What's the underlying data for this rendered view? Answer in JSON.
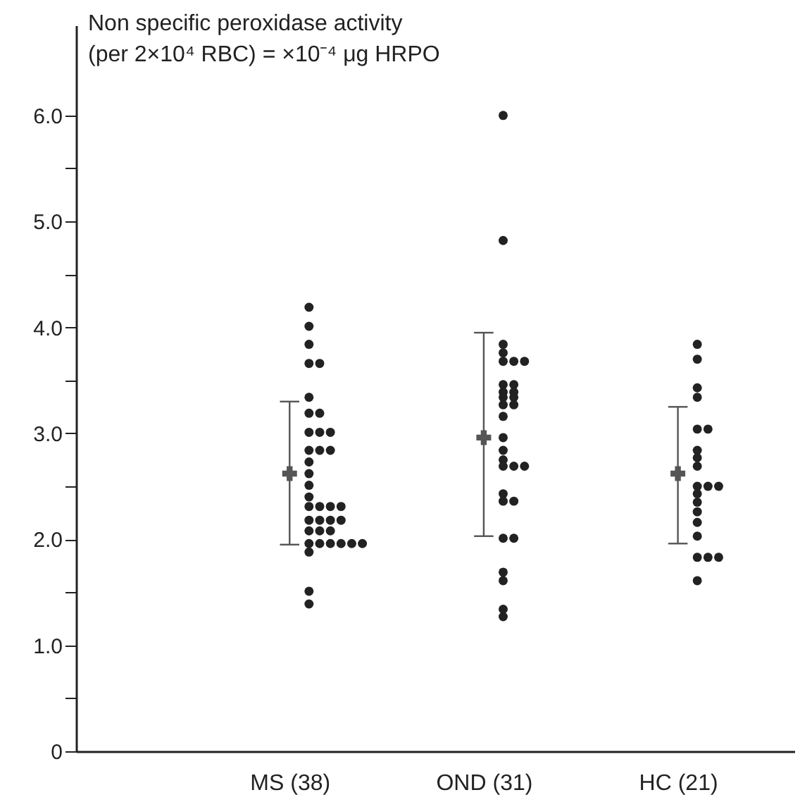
{
  "chart_data": {
    "type": "scatter",
    "categories": [
      "MS (38)",
      "OND (31)",
      "HC (21)"
    ],
    "ylabel": [
      "Non specific peroxidase activity",
      "(per 2×10⁴ RBC) = ×10⁻⁴ μg HRPO"
    ],
    "ylim": [
      0,
      6.85
    ],
    "yticks": [
      0,
      {
        "value": 0.5,
        "label": null
      },
      {
        "value": 1,
        "label": "1.0"
      },
      {
        "value": 1.5,
        "label": null
      },
      {
        "value": 2,
        "label": "2.0"
      },
      {
        "value": 2.5,
        "label": null
      },
      {
        "value": 3,
        "label": "3.0"
      },
      {
        "value": 3.5,
        "label": null
      },
      {
        "value": 4,
        "label": "4.0"
      },
      {
        "value": 4.5,
        "label": null
      },
      {
        "value": 5,
        "label": "5.0"
      },
      {
        "value": 5.5,
        "label": null
      },
      {
        "value": 6,
        "label": "6.0"
      }
    ],
    "grid": false,
    "marker": "circle",
    "series": [
      {
        "color": "#222222",
        "x": [
          "MS (38)",
          "MS (38)",
          "MS (38)",
          "MS (38)",
          "MS (38)",
          "MS (38)",
          "MS (38)",
          "MS (38)",
          "MS (38)",
          "MS (38)",
          "MS (38)",
          "MS (38)",
          "MS (38)",
          "MS (38)",
          "MS (38)",
          "MS (38)",
          "MS (38)",
          "MS (38)",
          "MS (38)",
          "MS (38)",
          "MS (38)",
          "MS (38)",
          "MS (38)",
          "MS (38)",
          "MS (38)",
          "MS (38)",
          "MS (38)",
          "MS (38)",
          "MS (38)",
          "MS (38)",
          "MS (38)",
          "MS (38)",
          "MS (38)",
          "MS (38)",
          "MS (38)",
          "MS (38)",
          "MS (38)",
          "MS (38)"
        ],
        "values": [
          4.19,
          4.01,
          3.84,
          3.66,
          3.66,
          3.34,
          3.19,
          3.19,
          3.01,
          3.01,
          3.01,
          2.84,
          2.84,
          2.84,
          2.73,
          2.62,
          2.51,
          2.4,
          2.31,
          2.31,
          2.31,
          2.31,
          2.18,
          2.18,
          2.18,
          2.18,
          2.08,
          2.08,
          2.08,
          1.96,
          1.96,
          1.96,
          1.96,
          1.96,
          1.96,
          1.88,
          1.51,
          1.39
        ]
      },
      {
        "color": "#222222",
        "x": [
          "OND (31)",
          "OND (31)",
          "OND (31)",
          "OND (31)",
          "OND (31)",
          "OND (31)",
          "OND (31)",
          "OND (31)",
          "OND (31)",
          "OND (31)",
          "OND (31)",
          "OND (31)",
          "OND (31)",
          "OND (31)",
          "OND (31)",
          "OND (31)",
          "OND (31)",
          "OND (31)",
          "OND (31)",
          "OND (31)",
          "OND (31)",
          "OND (31)",
          "OND (31)",
          "OND (31)",
          "OND (31)",
          "OND (31)",
          "OND (31)",
          "OND (31)",
          "OND (31)",
          "OND (31)",
          "OND (31)"
        ],
        "values": [
          6.0,
          4.82,
          3.84,
          3.76,
          3.68,
          3.68,
          3.68,
          3.46,
          3.46,
          3.39,
          3.39,
          3.34,
          3.34,
          3.27,
          3.27,
          3.16,
          2.96,
          2.84,
          2.75,
          2.69,
          2.69,
          2.69,
          2.43,
          2.36,
          2.36,
          2.01,
          2.01,
          1.69,
          1.61,
          1.34,
          1.27
        ]
      },
      {
        "color": "#222222",
        "x": [
          "HC (21)",
          "HC (21)",
          "HC (21)",
          "HC (21)",
          "HC (21)",
          "HC (21)",
          "HC (21)",
          "HC (21)",
          "HC (21)",
          "HC (21)",
          "HC (21)",
          "HC (21)",
          "HC (21)",
          "HC (21)",
          "HC (21)",
          "HC (21)",
          "HC (21)",
          "HC (21)",
          "HC (21)",
          "HC (21)",
          "HC (21)"
        ],
        "values": [
          3.84,
          3.7,
          3.43,
          3.34,
          3.04,
          3.04,
          2.84,
          2.77,
          2.69,
          2.5,
          2.5,
          2.5,
          2.43,
          2.35,
          2.26,
          2.16,
          2.03,
          1.83,
          1.83,
          1.83,
          1.61
        ]
      },
      {
        "type": "scatter",
        "marker": "cross",
        "color": "#555555",
        "x": [
          "MS (38)",
          "OND (31)",
          "HC (21)"
        ],
        "values": [
          2.62,
          2.96,
          2.62
        ],
        "errors": [
          [
            1.95,
            3.3
          ],
          [
            2.03,
            3.95
          ],
          [
            1.96,
            3.25
          ]
        ]
      }
    ]
  }
}
